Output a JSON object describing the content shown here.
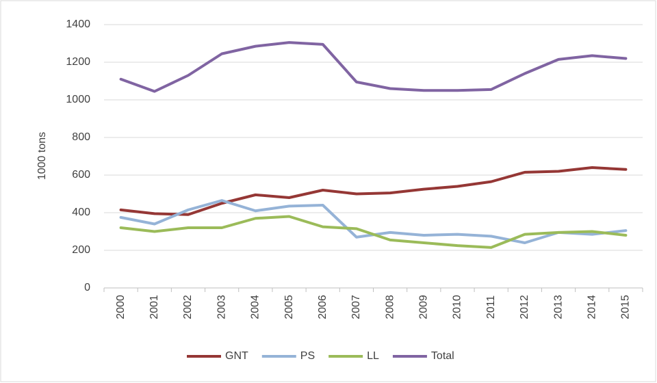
{
  "chart_data": {
    "type": "line",
    "y_label": "1000 tons",
    "categories": [
      "2000",
      "2001",
      "2002",
      "2003",
      "2004",
      "2005",
      "2006",
      "2007",
      "2008",
      "2009",
      "2010",
      "2011",
      "2012",
      "2013",
      "2014",
      "2015"
    ],
    "series": [
      {
        "name": "GNT",
        "color": "#953735",
        "values": [
          415,
          395,
          390,
          450,
          495,
          480,
          520,
          500,
          505,
          525,
          540,
          565,
          615,
          620,
          640,
          630
        ]
      },
      {
        "name": "PS",
        "color": "#95b3d7",
        "values": [
          375,
          340,
          415,
          465,
          410,
          435,
          440,
          270,
          295,
          280,
          285,
          275,
          240,
          295,
          285,
          305
        ]
      },
      {
        "name": "LL",
        "color": "#9bbb59",
        "values": [
          320,
          300,
          320,
          320,
          370,
          380,
          325,
          315,
          255,
          240,
          225,
          215,
          285,
          295,
          300,
          280
        ]
      },
      {
        "name": "Total",
        "color": "#8064a2",
        "values": [
          1110,
          1045,
          1130,
          1245,
          1285,
          1305,
          1295,
          1095,
          1060,
          1050,
          1050,
          1055,
          1140,
          1215,
          1235,
          1220
        ]
      }
    ],
    "ylim": [
      0,
      1400
    ],
    "yticks": [
      0,
      200,
      400,
      600,
      800,
      1000,
      1200,
      1400
    ],
    "grid": true,
    "legend": "bottom"
  }
}
